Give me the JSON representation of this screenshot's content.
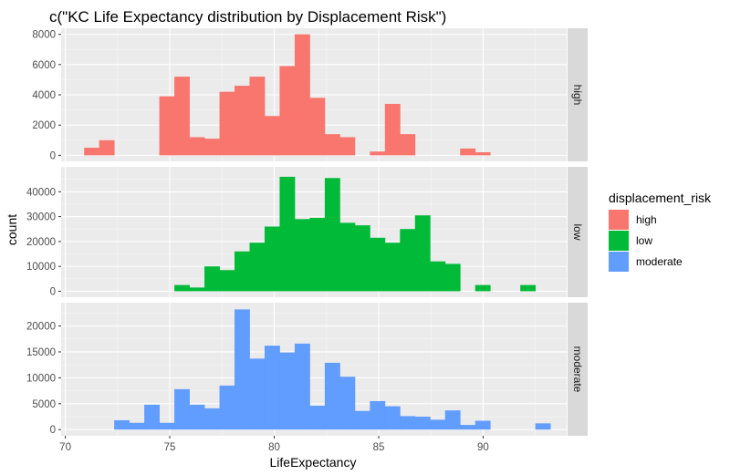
{
  "chart_data": {
    "type": "bar",
    "subtype": "faceted-histogram",
    "title": "c(\"KC Life Expectancy distribution by Displacement Risk\")",
    "xlabel": "LifeExpectancy",
    "ylabel": "count",
    "xlim": [
      69.8,
      94.0
    ],
    "xticks": [
      70,
      75,
      80,
      85,
      90
    ],
    "bin_width": 0.72,
    "bin_starts": [
      70.9,
      71.62,
      72.34,
      73.06,
      73.78,
      74.5,
      75.22,
      75.94,
      76.66,
      77.38,
      78.1,
      78.82,
      79.54,
      80.26,
      80.98,
      81.7,
      82.42,
      83.14,
      83.86,
      84.58,
      85.3,
      86.02,
      86.74,
      87.46,
      88.18,
      88.9,
      89.62,
      90.34,
      91.06,
      91.78,
      92.5
    ],
    "legend": {
      "title": "displacement_risk",
      "position": "right",
      "entries": [
        {
          "label": "high",
          "color": "#F8766D"
        },
        {
          "label": "low",
          "color": "#00BA38"
        },
        {
          "label": "moderate",
          "color": "#619CFF"
        }
      ]
    },
    "grid": true,
    "panels": [
      {
        "name": "high",
        "color": "#F8766D",
        "ylim": [
          -400,
          8400
        ],
        "yticks": [
          0,
          2000,
          4000,
          6000,
          8000
        ],
        "values": [
          500,
          1000,
          0,
          0,
          0,
          3900,
          5200,
          1200,
          1100,
          4200,
          4600,
          5200,
          2600,
          5900,
          8000,
          3800,
          1400,
          1200,
          0,
          250,
          3400,
          1400,
          0,
          0,
          0,
          450,
          200,
          0,
          0,
          0,
          0
        ]
      },
      {
        "name": "low",
        "color": "#00BA38",
        "ylim": [
          -2400,
          50000
        ],
        "yticks": [
          0,
          10000,
          20000,
          30000,
          40000
        ],
        "values": [
          0,
          0,
          0,
          0,
          0,
          0,
          2500,
          1500,
          10000,
          8500,
          16000,
          19500,
          26000,
          46000,
          29000,
          29500,
          45500,
          27500,
          26500,
          21500,
          19500,
          25000,
          30500,
          12000,
          11000,
          0,
          2500,
          0,
          0,
          2500,
          0
        ]
      },
      {
        "name": "moderate",
        "color": "#619CFF",
        "ylim": [
          -1200,
          24500
        ],
        "yticks": [
          0,
          5000,
          10000,
          15000,
          20000
        ],
        "values": [
          0,
          0,
          1800,
          1300,
          4800,
          1300,
          7800,
          4800,
          4100,
          8500,
          23200,
          13700,
          16200,
          14900,
          16600,
          4600,
          12900,
          10200,
          3600,
          5500,
          4500,
          2600,
          2500,
          1900,
          3700,
          900,
          1700,
          0,
          0,
          0,
          1200
        ]
      }
    ]
  }
}
